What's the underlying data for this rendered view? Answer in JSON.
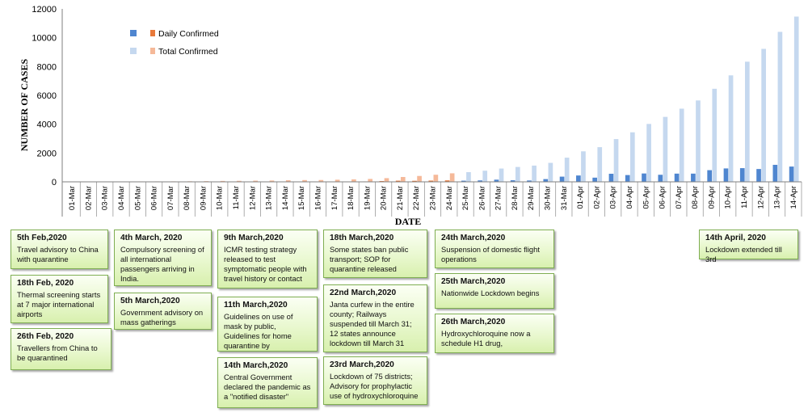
{
  "chart_data": {
    "type": "bar",
    "ylabel": "NUMBER OF CASES",
    "xlabel": "DATE",
    "ylim": [
      0,
      12000
    ],
    "yticks": [
      "0",
      "2000",
      "4000",
      "6000",
      "8000",
      "10000",
      "12000"
    ],
    "grid": false,
    "legend_position": "top-left",
    "categories": [
      "01-Mar",
      "02-Mar",
      "03-Mar",
      "04-Mar",
      "05-Mar",
      "06-Mar",
      "07-Mar",
      "08-Mar",
      "09-Mar",
      "10-Mar",
      "11-Mar",
      "12-Mar",
      "13-Mar",
      "14-Mar",
      "15-Mar",
      "16-Mar",
      "17-Mar",
      "18-Mar",
      "19-Mar",
      "20-Mar",
      "21-Mar",
      "22-Mar",
      "23-Mar",
      "24-Mar",
      "25-Mar",
      "26-Mar",
      "27-Mar",
      "28-Mar",
      "29-Mar",
      "30-Mar",
      "31-Mar",
      "01-Apr",
      "02-Apr",
      "03-Apr",
      "04-Apr",
      "05-Apr",
      "06-Apr",
      "07-Apr",
      "08-Apr",
      "09-Apr",
      "10-Apr",
      "11-Apr",
      "12-Apr",
      "13-Apr",
      "14-Apr"
    ],
    "series": [
      {
        "name": "Daily Confirmed",
        "values": [
          0,
          2,
          1,
          22,
          2,
          1,
          3,
          5,
          9,
          15,
          6,
          13,
          9,
          20,
          11,
          5,
          20,
          23,
          30,
          55,
          80,
          72,
          85,
          100,
          80,
          100,
          150,
          110,
          95,
          190,
          360,
          440,
          290,
          560,
          470,
          580,
          490,
          570,
          570,
          810,
          930,
          950,
          890,
          1180,
          1060
        ]
      },
      {
        "name": "Total Confirmed",
        "values": [
          3,
          5,
          6,
          28,
          30,
          31,
          34,
          39,
          48,
          63,
          70,
          82,
          91,
          111,
          122,
          127,
          147,
          170,
          200,
          255,
          335,
          407,
          492,
          592,
          672,
          772,
          922,
          1032,
          1127,
          1317,
          1677,
          2117,
          2407,
          2967,
          3437,
          4017,
          4507,
          5077,
          5647,
          6457,
          7387,
          8337,
          9227,
          10407,
          11467
        ]
      }
    ],
    "colors": {
      "daily_confirmed_2020_05_plus": "#4f86d0",
      "daily_confirmed_early": "#e8793a",
      "total_confirmed_late": "#c5d8ef",
      "total_confirmed_early": "#f5b999"
    },
    "legend": [
      {
        "label": "Daily Confirmed"
      },
      {
        "label": "Total Confirmed"
      }
    ]
  },
  "annotations": [
    {
      "title": "5th Feb,2020",
      "body": "Travel advisory to China with quarantine"
    },
    {
      "title": "18th Feb, 2020",
      "body": "Thermal screening starts at 7 major international airports"
    },
    {
      "title": "26th Feb, 2020",
      "body": "Travellers from China to be quarantined"
    },
    {
      "title": "4th March, 2020",
      "body": "Compulsory screening of all international passengers arriving in India."
    },
    {
      "title": "5th March,2020",
      "body": "Government advisory on mass gatherings"
    },
    {
      "title": "9th March,2020",
      "body": "ICMR testing strategy released to test symptomatic people with travel history or contact"
    },
    {
      "title": "11th March,2020",
      "body": "Guidelines on use of mask by public, Guidelines for home quarantine by"
    },
    {
      "title": "14th March,2020",
      "body": "Central Government declared the pandemic as a \"notified disaster\""
    },
    {
      "title": "18th March,2020",
      "body": "Some states ban public transport; SOP for quarantine released"
    },
    {
      "title": "22nd March,2020",
      "body": "Janta curfew in the entire county; Railways suspended till March 31; 12 states announce lockdown till March 31"
    },
    {
      "title": "23rd March,2020",
      "body": "Lockdown of 75 districts; Advisory for prophylactic use of hydroxychloroquine"
    },
    {
      "title": "24th March,2020",
      "body": "Suspension of domestic flight operations"
    },
    {
      "title": "25th March,2020",
      "body": "Nationwide Lockdown begins"
    },
    {
      "title": "26th March,2020",
      "body": "Hydroxychloroquine now a schedule H1 drug,"
    },
    {
      "title": "14th April, 2020",
      "body": "Lockdown extended till 3rd"
    }
  ]
}
